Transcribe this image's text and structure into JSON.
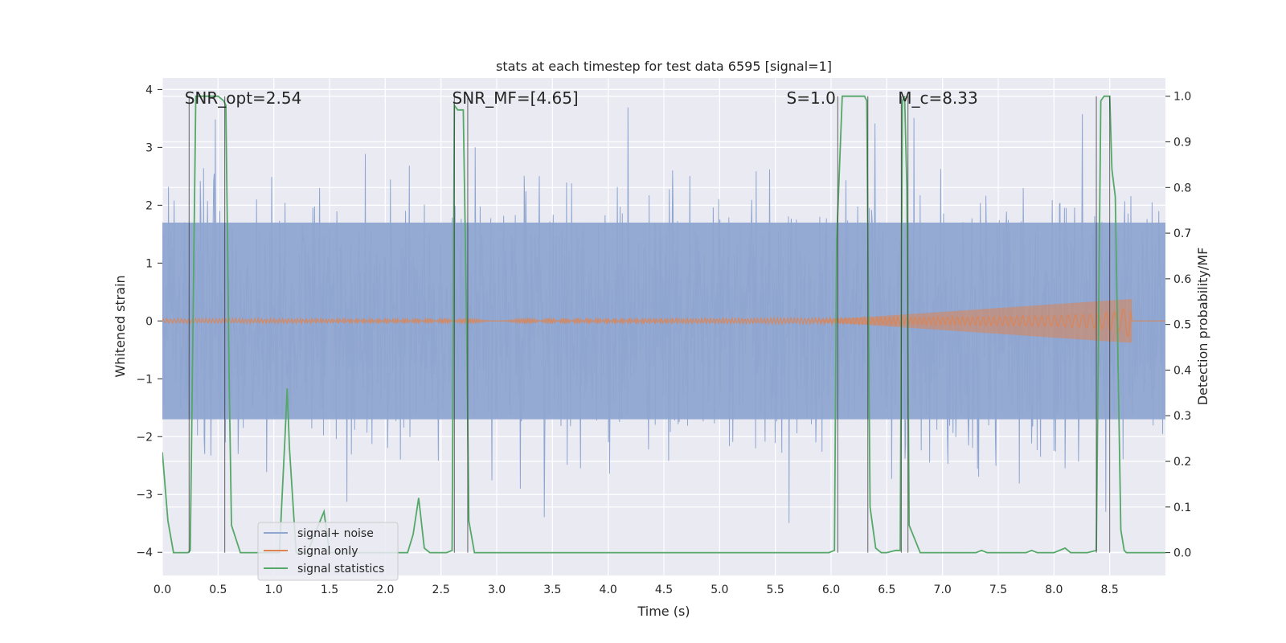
{
  "chart_data": {
    "type": "line",
    "title": "stats at each timestep for test data 6595 [signal=1]",
    "xlabel": "Time (s)",
    "ylabel_left": "Whitened strain",
    "ylabel_right": "Detection probability/MF",
    "xlim": [
      0.0,
      9.0
    ],
    "ylim_left": [
      -4.4,
      4.2
    ],
    "ylim_right": [
      -0.05,
      1.04
    ],
    "x_ticks": [
      0.0,
      0.5,
      1.0,
      1.5,
      2.0,
      2.5,
      3.0,
      3.5,
      4.0,
      4.5,
      5.0,
      5.5,
      6.0,
      6.5,
      7.0,
      7.5,
      8.0,
      8.5
    ],
    "x_tick_labels": [
      "0.0",
      "0.5",
      "1.0",
      "1.5",
      "2.0",
      "2.5",
      "3.0",
      "3.5",
      "4.0",
      "4.5",
      "5.0",
      "5.5",
      "6.0",
      "6.5",
      "7.0",
      "7.5",
      "8.0",
      "8.5"
    ],
    "y_left_ticks": [
      4,
      3,
      2,
      1,
      0,
      -1,
      -2,
      -3,
      -4
    ],
    "y_left_tick_labels": [
      "4",
      "3",
      "2",
      "1",
      "0",
      "−1",
      "−2",
      "−3",
      "−4"
    ],
    "y_right_ticks": [
      1.0,
      0.9,
      0.8,
      0.7,
      0.6,
      0.5,
      0.4,
      0.3,
      0.2,
      0.1,
      0.0
    ],
    "y_right_tick_labels": [
      "1.0",
      "0.9",
      "0.8",
      "0.7",
      "0.6",
      "0.5",
      "0.4",
      "0.3",
      "0.2",
      "0.1",
      "0.0"
    ],
    "annotations": [
      {
        "text": "SNR_opt=2.54",
        "x": 0.2,
        "y": 3.85
      },
      {
        "text": "SNR_MF=[4.65]",
        "x": 2.6,
        "y": 3.85
      },
      {
        "text": "S=1.0",
        "x": 5.6,
        "y": 3.85
      },
      {
        "text": "M_c=8.33",
        "x": 6.6,
        "y": 3.85
      }
    ],
    "series": [
      {
        "name": "signal+ noise",
        "color": "#8fa6d1",
        "axis": "left",
        "style": "noisy-strain",
        "n_samples": 1800,
        "core_band": [
          -1.7,
          1.7
        ],
        "extremes": [
          -3.8,
          3.8
        ]
      },
      {
        "name": "signal only",
        "color": "#dd8452",
        "axis": "left",
        "style": "chirp",
        "chirp_end": 8.7,
        "chirp_peak_amplitude": 0.35
      },
      {
        "name": "signal statistics",
        "color": "#55a868",
        "axis": "right",
        "x": [
          0.0,
          0.05,
          0.1,
          0.2,
          0.23,
          0.25,
          0.3,
          0.5,
          0.55,
          0.57,
          0.6,
          0.62,
          0.7,
          0.8,
          0.9,
          1.0,
          1.05,
          1.1,
          1.12,
          1.14,
          1.2,
          1.3,
          1.4,
          1.45,
          1.5,
          1.6,
          1.8,
          2.0,
          2.2,
          2.25,
          2.3,
          2.35,
          2.4,
          2.5,
          2.55,
          2.6,
          2.62,
          2.65,
          2.7,
          2.73,
          2.75,
          2.8,
          2.9,
          3.0,
          4.0,
          5.0,
          5.98,
          6.03,
          6.05,
          6.1,
          6.15,
          6.3,
          6.32,
          6.35,
          6.4,
          6.45,
          6.5,
          6.58,
          6.62,
          6.64,
          6.66,
          6.68,
          6.7,
          6.8,
          6.9,
          7.0,
          7.3,
          7.35,
          7.4,
          7.5,
          7.75,
          7.8,
          7.85,
          8.0,
          8.1,
          8.15,
          8.2,
          8.3,
          8.38,
          8.42,
          8.45,
          8.5,
          8.52,
          8.55,
          8.6,
          8.63,
          8.65,
          8.7,
          8.9,
          9.0
        ],
        "values": [
          0.22,
          0.07,
          0.0,
          0.0,
          0.0,
          0.005,
          1.0,
          1.0,
          0.99,
          0.98,
          0.37,
          0.06,
          0.0,
          0.0,
          0.0,
          0.0,
          0.0,
          0.25,
          0.36,
          0.23,
          0.0,
          0.0,
          0.06,
          0.09,
          0.0,
          0.0,
          0.0,
          0.0,
          0.0,
          0.04,
          0.12,
          0.01,
          0.0,
          0.0,
          0.0,
          0.005,
          0.98,
          0.97,
          0.97,
          0.5,
          0.07,
          0.0,
          0.0,
          0.0,
          0.0,
          0.0,
          0.0,
          0.005,
          0.68,
          1.0,
          1.0,
          1.0,
          0.99,
          0.1,
          0.01,
          0.0,
          0.0,
          0.005,
          0.005,
          0.99,
          1.0,
          0.8,
          0.06,
          0.0,
          0.0,
          0.0,
          0.0,
          0.005,
          0.0,
          0.0,
          0.0,
          0.005,
          0.0,
          0.0,
          0.01,
          0.0,
          0.0,
          0.0,
          0.005,
          0.99,
          1.0,
          1.0,
          0.84,
          0.78,
          0.05,
          0.005,
          0.0,
          0.0,
          0.0,
          0.0
        ]
      }
    ],
    "vertical_markers": [
      0.24,
      0.56,
      2.62,
      2.74,
      6.06,
      6.33,
      6.63,
      6.69,
      8.38,
      8.5
    ],
    "legend": {
      "position": "lower-left",
      "entries": [
        "signal+ noise",
        "signal only",
        "signal statistics"
      ]
    }
  }
}
